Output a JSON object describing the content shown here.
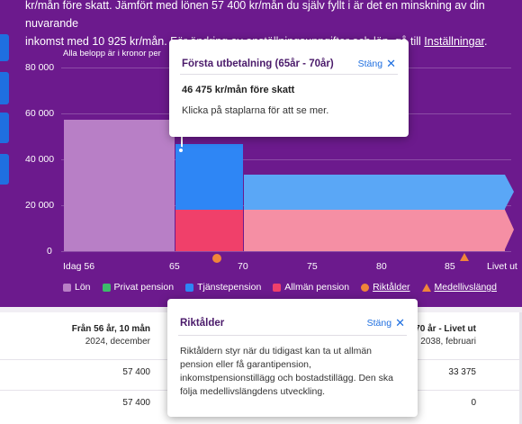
{
  "intro": {
    "line1": "kr/mån före skatt. Jämfört med lönen 57 400 kr/mån du själv fyllt i är det en minskning av din nuvarande",
    "line2_prefix": "inkomst med 10 925 kr/mån. För ändring av anställningsuppgifter och lön, gå till ",
    "line2_link": "Inställningar",
    "line2_suffix": "."
  },
  "chart_note": "Alla belopp är i kronor per",
  "colors": {
    "background": "#6c1a8d",
    "lon": "#b87fc6",
    "privat_pension": "#3dbb6b",
    "tjanstepension": "#2e86f5",
    "tjanstepension_later": "#5aa7f6",
    "allman_pension": "#f0406a",
    "allman_pension_later": "#f58fa4",
    "marker": "#f0853a"
  },
  "chart_data": {
    "type": "bar",
    "note": "Alla belopp är i kronor per",
    "ylim": [
      0,
      80000
    ],
    "y_ticks": [
      "80 000",
      "60 000",
      "40 000",
      "20 000",
      "0"
    ],
    "x_ticks": [
      "Idag 56",
      "65",
      "70",
      "75",
      "80",
      "85",
      "Livet ut"
    ],
    "segments": [
      {
        "period": "Idag 56 – 65",
        "series": "Lön",
        "value": 57400
      },
      {
        "period": "65 – 70",
        "series": "Allmän pension",
        "value": 18000
      },
      {
        "period": "65 – 70",
        "series": "Tjänstepension",
        "value": 28475
      },
      {
        "period": "70 – Livet ut",
        "series": "Allmän pension",
        "value": 18000
      },
      {
        "period": "70 – Livet ut",
        "series": "Tjänstepension",
        "value": 15375
      }
    ],
    "markers": [
      {
        "name": "Riktålder",
        "x": 68
      },
      {
        "name": "Medellivslängd",
        "x": 86
      }
    ],
    "legend": [
      "Lön",
      "Privat pension",
      "Tjänstepension",
      "Allmän pension",
      "Riktålder",
      "Medellivslängd"
    ]
  },
  "legend": {
    "lon": "Lön",
    "privat": "Privat pension",
    "tjanste": "Tjänstepension",
    "allman": "Allmän pension",
    "riktalder": "Riktålder",
    "medel": "Medellivslängd"
  },
  "popover_top": {
    "title": "Första utbetalning (65år - 70år)",
    "close_label": "Stäng",
    "amount": "46 475 kr/mån före skatt",
    "hint": "Klicka på staplarna för att se mer."
  },
  "popover_bottom": {
    "title": "Riktålder",
    "close_label": "Stäng",
    "body": "Riktåldern styr när du tidigast kan ta ut allmän pension eller få garantipension, inkomstpensionstillägg och bostadstillägg. Den ska följa medellivslängdens utveckling."
  },
  "table": {
    "col1_title": "Från 56 år, 10 mån",
    "col1_sub": "2024, december",
    "col3_title": "70 år - Livet ut",
    "col3_sub": "2038, februari",
    "rows": [
      {
        "col1": "57 400",
        "col3": "33 375"
      },
      {
        "col1": "57 400",
        "col3": "0"
      }
    ]
  }
}
